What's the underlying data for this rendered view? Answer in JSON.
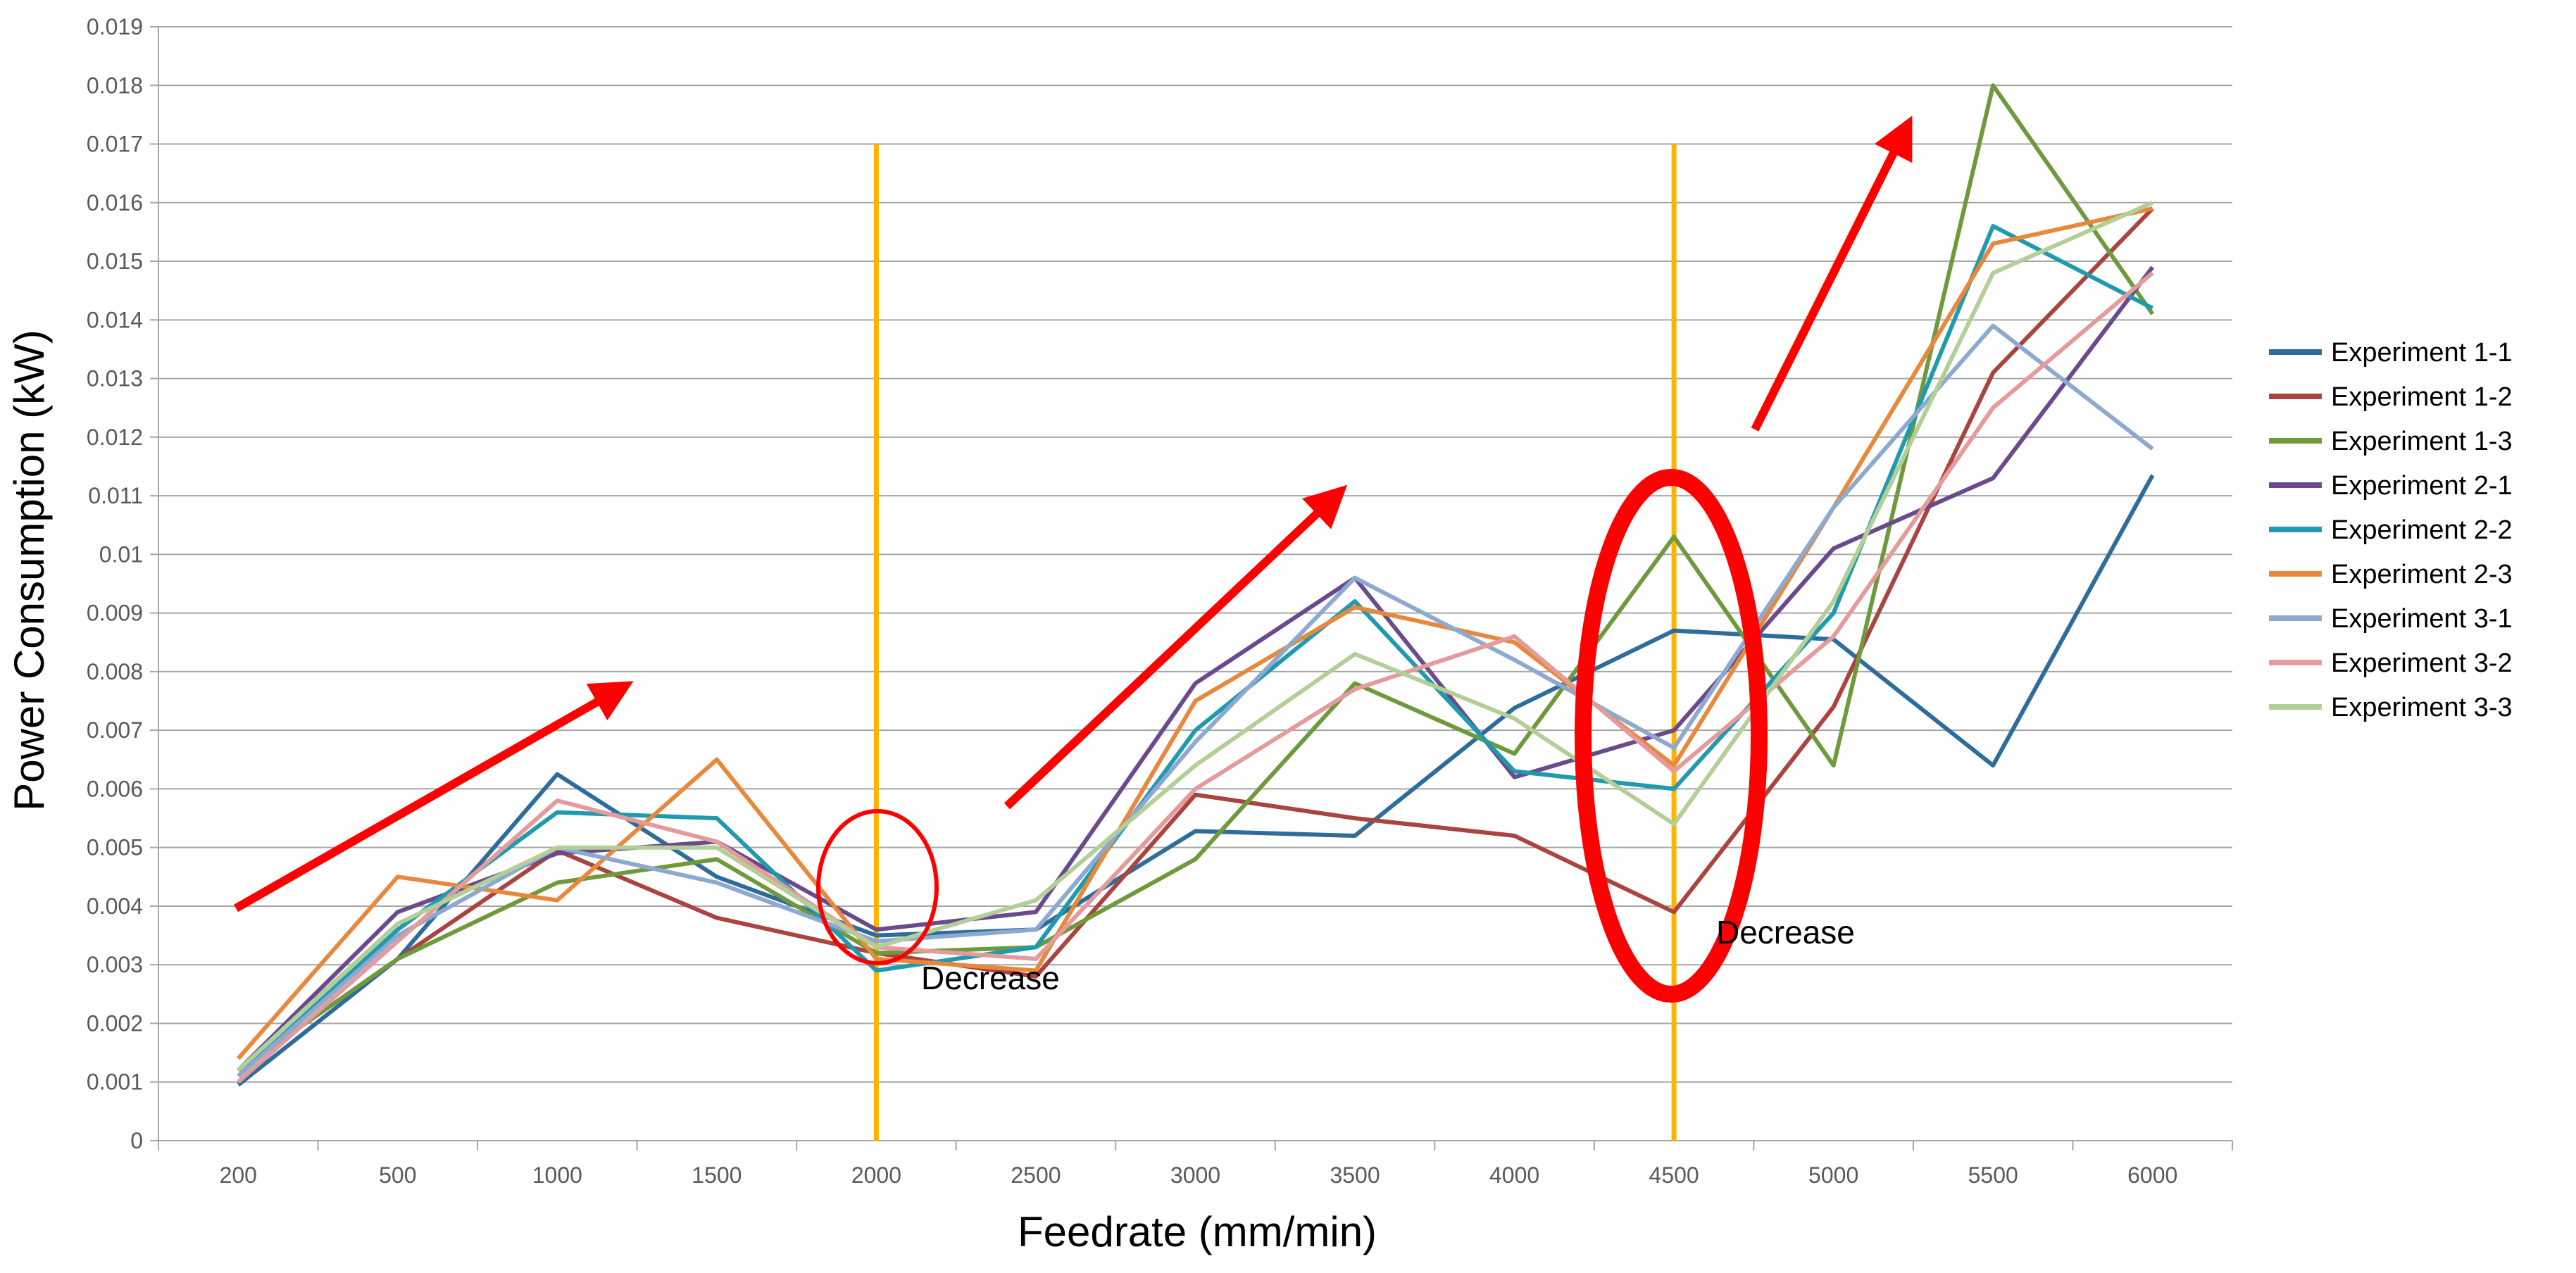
{
  "chart_data": {
    "type": "line",
    "title": "",
    "xlabel": "Feedrate (mm/min)",
    "ylabel": "Power Consumption (kW)",
    "categories": [
      "200",
      "500",
      "1000",
      "1500",
      "2000",
      "2500",
      "3000",
      "3500",
      "4000",
      "4500",
      "5000",
      "5500",
      "6000"
    ],
    "ylim": [
      0,
      0.019
    ],
    "yticks": [
      "0",
      "0.001",
      "0.002",
      "0.003",
      "0.004",
      "0.005",
      "0.006",
      "0.007",
      "0.008",
      "0.009",
      "0.01",
      "0.011",
      "0.012",
      "0.013",
      "0.014",
      "0.015",
      "0.016",
      "0.017",
      "0.018",
      "0.019"
    ],
    "grid": true,
    "legend_position": "right",
    "series": [
      {
        "name": "Experiment 1-1",
        "color": "#2E6C9C",
        "values": [
          0.00095,
          0.0031,
          0.00625,
          0.0045,
          0.0035,
          0.0036,
          0.00528,
          0.0052,
          0.00738,
          0.0087,
          0.00855,
          0.0064,
          0.01135
        ]
      },
      {
        "name": "Experiment 1-2",
        "color": "#A9443F",
        "values": [
          0.0012,
          0.0031,
          0.00495,
          0.0038,
          0.0032,
          0.0028,
          0.0059,
          0.0055,
          0.0052,
          0.0039,
          0.0074,
          0.0131,
          0.0159
        ]
      },
      {
        "name": "Experiment 1-3",
        "color": "#6E9A3C",
        "values": [
          0.0012,
          0.0031,
          0.0044,
          0.0048,
          0.0032,
          0.0033,
          0.0048,
          0.0078,
          0.0066,
          0.0103,
          0.0064,
          0.018,
          0.0141
        ]
      },
      {
        "name": "Experiment 2-1",
        "color": "#6A4A8C",
        "values": [
          0.0012,
          0.0039,
          0.0049,
          0.0051,
          0.0036,
          0.0039,
          0.0078,
          0.0096,
          0.0062,
          0.007,
          0.0101,
          0.0113,
          0.0149
        ]
      },
      {
        "name": "Experiment 2-2",
        "color": "#1F9AAF",
        "values": [
          0.0011,
          0.0036,
          0.0056,
          0.0055,
          0.0029,
          0.0033,
          0.007,
          0.0092,
          0.0063,
          0.006,
          0.009,
          0.0156,
          0.0142
        ]
      },
      {
        "name": "Experiment 2-3",
        "color": "#E8883C",
        "values": [
          0.0014,
          0.0045,
          0.0041,
          0.0065,
          0.0031,
          0.0029,
          0.0075,
          0.0091,
          0.0085,
          0.0064,
          0.0108,
          0.0153,
          0.0159
        ]
      },
      {
        "name": "Experiment 3-1",
        "color": "#8EA9D0",
        "values": [
          0.0011,
          0.0035,
          0.005,
          0.0044,
          0.0034,
          0.0036,
          0.0068,
          0.0096,
          0.0082,
          0.0067,
          0.0108,
          0.0139,
          0.0118
        ]
      },
      {
        "name": "Experiment 3-2",
        "color": "#E39B9B",
        "values": [
          0.001,
          0.0034,
          0.0058,
          0.0051,
          0.0033,
          0.0031,
          0.006,
          0.0077,
          0.0086,
          0.0063,
          0.0086,
          0.0125,
          0.0148
        ]
      },
      {
        "name": "Experiment 3-3",
        "color": "#B2CF97",
        "values": [
          0.0012,
          0.0037,
          0.005,
          0.005,
          0.0033,
          0.0041,
          0.0064,
          0.0083,
          0.0072,
          0.0054,
          0.0092,
          0.0148,
          0.016
        ]
      }
    ],
    "annotations": [
      {
        "text": "Decrease",
        "near": "2000"
      },
      {
        "text": "Decrease",
        "near": "4500"
      }
    ],
    "vertical_markers": [
      "2000",
      "4500"
    ],
    "colors": {
      "marker_line": "#FFB300",
      "highlight": "#FF0000",
      "grid": "#A6A6A6"
    }
  }
}
